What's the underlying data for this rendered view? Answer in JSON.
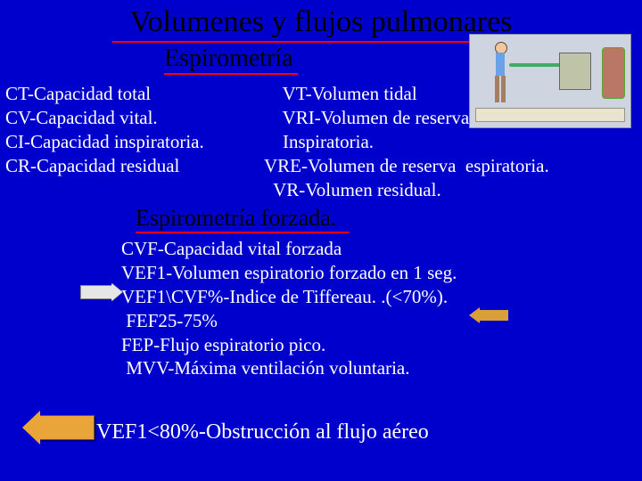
{
  "colors": {
    "background": "#0000cc",
    "title_text": "#000000",
    "title_underline": "#ff0000",
    "body_text": "#ffffff",
    "arrow_outline_fill": "#e6e6e6",
    "arrow_orange": "#e9a53a",
    "arrow_orange_small": "#d9a03a"
  },
  "typography": {
    "family": "Times New Roman, serif",
    "title_size_pt": 26,
    "subtitle_size_pt": 21,
    "body_size_pt": 16,
    "bottom_size_pt": 18
  },
  "title": "Volumenes y flujos pulmonares",
  "section1": {
    "heading": "Espirometría",
    "left": [
      "CT-Capacidad total",
      "CV-Capacidad vital.",
      "CI-Capacidad inspiratoria.",
      "CR-Capacidad residual"
    ],
    "right": [
      "    VT-Volumen tidal",
      "    VRI-Volumen de reserva",
      "    Inspiratoria.",
      "VRE-Volumen de reserva  espiratoria.",
      "  VR-Volumen residual."
    ]
  },
  "section2": {
    "heading": "Espirometría forzada.",
    "lines": [
      "CVF-Capacidad vital forzada",
      "VEF1-Volumen espiratorio forzado en 1 seg.",
      "VEF1\\CVF%-Indice de Tiffereau. .(<70%).",
      " FEF25-75%",
      "FEP-Flujo espiratorio pico.",
      " MVV-Máxima ventilación voluntaria."
    ]
  },
  "bottom": "VEF1<80%-Obstrucción al flujo aéreo",
  "illustration": {
    "description": "Spirometry diagram: standing patient breathing through tube into recording drum/spirometer",
    "bg": "#cfd5e0"
  }
}
